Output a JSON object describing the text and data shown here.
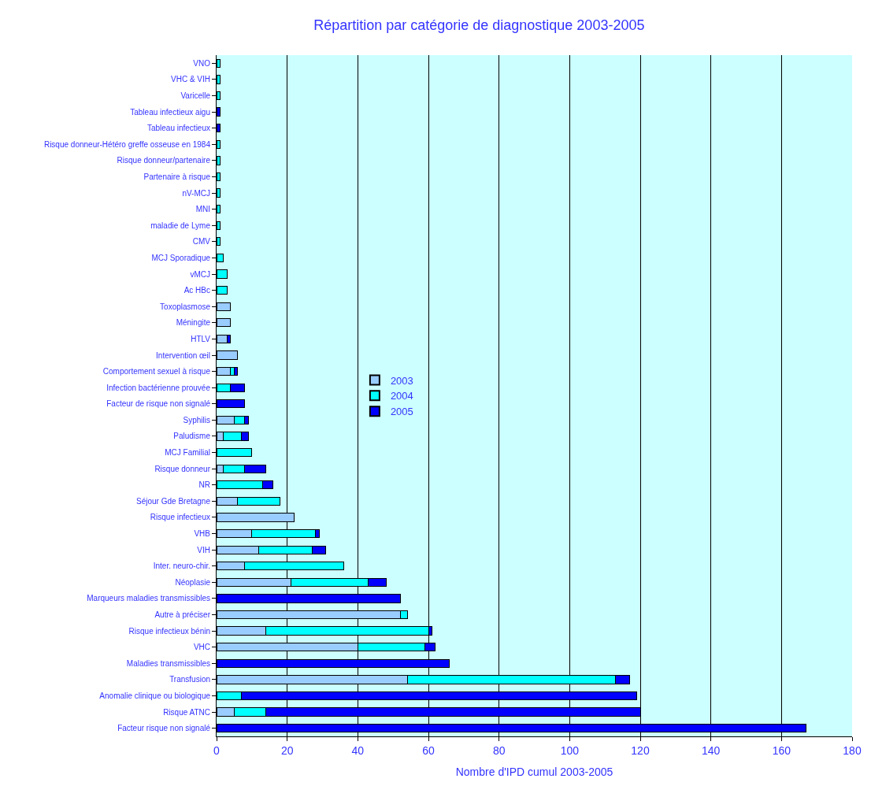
{
  "chart_data": {
    "type": "bar",
    "orientation": "horizontal",
    "stacked": true,
    "title": "Répartition par catégorie de diagnostique 2003-2005",
    "xlabel": "Nombre d'IPD cumul 2003-2005",
    "categories": [
      "VNO",
      "VHC & VIH",
      "Varicelle",
      "Tableau infectieux aigu",
      "Tableau infectieux",
      "Risque donneur-Hétéro greffe osseuse en 1984",
      "Risque donneur/partenaire",
      "Partenaire à risque",
      "nV-MCJ",
      "MNI",
      "maladie de Lyme",
      "CMV",
      "MCJ Sporadique",
      "vMCJ",
      "Ac HBc",
      "Toxoplasmose",
      "Méningite",
      "HTLV",
      "Intervention œil",
      "Comportement sexuel à risque",
      "Infection bactérienne prouvée",
      "Facteur de risque non signalé",
      "Syphilis",
      "Paludisme",
      "MCJ Familial",
      "Risque donneur",
      "NR",
      "Séjour Gde Bretagne",
      "Risque infectieux",
      "VHB",
      "VIH",
      "Inter. neuro-chir.",
      "Néoplasie",
      "Marqueurs maladies transmissibles",
      "Autre à préciser",
      "Risque infectieux bénin",
      "VHC",
      "Maladies transmissibles",
      "Transfusion",
      "Anomalie clinique ou biologique",
      "Risque ATNC",
      "Facteur risque non signalé"
    ],
    "series": [
      {
        "name": "2003",
        "color": "#99ccff",
        "values": [
          0,
          0,
          0,
          0,
          0,
          0,
          0,
          0,
          0,
          0,
          0,
          0,
          0,
          0,
          0,
          4,
          4,
          3,
          6,
          4,
          0,
          0,
          5,
          2,
          0,
          2,
          0,
          6,
          22,
          10,
          12,
          8,
          21,
          0,
          52,
          14,
          40,
          0,
          54,
          0,
          5,
          0
        ]
      },
      {
        "name": "2004",
        "color": "#00ffff",
        "values": [
          1,
          1,
          1,
          0,
          0,
          1,
          1,
          1,
          1,
          1,
          1,
          1,
          2,
          3,
          3,
          0,
          0,
          0,
          0,
          1,
          4,
          0,
          3,
          5,
          10,
          6,
          13,
          12,
          0,
          18,
          15,
          28,
          22,
          0,
          2,
          46,
          19,
          0,
          59,
          7,
          9,
          0
        ]
      },
      {
        "name": "2005",
        "color": "#0000ff",
        "values": [
          0,
          0,
          0,
          1,
          1,
          0,
          0,
          0,
          0,
          0,
          0,
          0,
          0,
          0,
          0,
          0,
          0,
          1,
          0,
          1,
          4,
          8,
          1,
          2,
          0,
          6,
          3,
          0,
          0,
          1,
          4,
          0,
          5,
          52,
          0,
          1,
          3,
          66,
          4,
          112,
          106,
          167
        ]
      }
    ],
    "xlim": [
      0,
      180
    ],
    "xticks": [
      0,
      20,
      40,
      60,
      80,
      100,
      120,
      140,
      160,
      180
    ],
    "grid": "x",
    "legend": "center"
  }
}
